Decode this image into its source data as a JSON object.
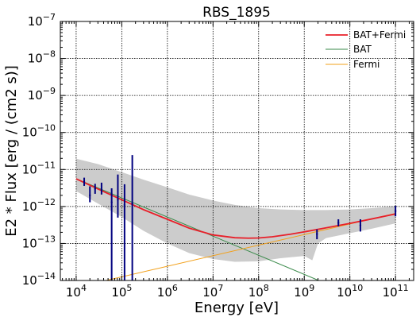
{
  "chart_data": {
    "type": "line",
    "title": "RBS_1895",
    "xlabel": "Energy [eV]",
    "ylabel": "E2 * Flux [erg / (cm2 s)]",
    "xscale": "log",
    "yscale": "log",
    "xlim": [
      4500.0,
      250000000000.0
    ],
    "ylim": [
      1e-14,
      1e-07
    ],
    "grid": true,
    "legend_position": "top-right",
    "x_ticks": [
      {
        "value": 10000.0,
        "base": "10",
        "exp": "4"
      },
      {
        "value": 100000.0,
        "base": "10",
        "exp": "5"
      },
      {
        "value": 1000000.0,
        "base": "10",
        "exp": "6"
      },
      {
        "value": 10000000.0,
        "base": "10",
        "exp": "7"
      },
      {
        "value": 100000000.0,
        "base": "10",
        "exp": "8"
      },
      {
        "value": 1000000000.0,
        "base": "10",
        "exp": "9"
      },
      {
        "value": 10000000000.0,
        "base": "10",
        "exp": "10"
      },
      {
        "value": 100000000000.0,
        "base": "10",
        "exp": "11"
      }
    ],
    "y_ticks": [
      {
        "value": 1e-14,
        "base": "10",
        "exp": "−14"
      },
      {
        "value": 1e-13,
        "base": "10",
        "exp": "−13"
      },
      {
        "value": 1e-12,
        "base": "10",
        "exp": "−12"
      },
      {
        "value": 1e-11,
        "base": "10",
        "exp": "−11"
      },
      {
        "value": 1e-10,
        "base": "10",
        "exp": "−10"
      },
      {
        "value": 1e-09,
        "base": "10",
        "exp": "−9"
      },
      {
        "value": 1e-08,
        "base": "10",
        "exp": "−8"
      },
      {
        "value": 1e-07,
        "base": "10",
        "exp": "−7"
      }
    ],
    "series": [
      {
        "name": "BAT+Fermi",
        "color": "#e8202a",
        "width": 1.8,
        "x": [
          10000.0,
          30000.0,
          100000.0,
          300000.0,
          1000000.0,
          3000000.0,
          10000000.0,
          30000000.0,
          60000000.0,
          100000000.0,
          200000000.0,
          500000000.0,
          1000000000.0,
          3000000000.0,
          10000000000.0,
          30000000000.0,
          100000000000.0
        ],
        "y": [
          5.6e-12,
          2.97e-12,
          1.52e-12,
          8.2e-13,
          4.5e-13,
          2.6e-13,
          1.7e-13,
          1.43e-13,
          1.39e-13,
          1.41e-13,
          1.52e-13,
          1.78e-13,
          2.06e-13,
          2.65e-13,
          3.5e-13,
          4.6e-13,
          6.3e-13
        ]
      },
      {
        "name": "BAT",
        "color": "#3a8a4a",
        "width": 1.0,
        "x": [
          10000.0,
          100000000000.0
        ],
        "y": [
          5.6e-12,
          1.35e-15
        ]
      },
      {
        "name": "Fermi",
        "color": "#f2a01a",
        "width": 1.0,
        "x": [
          10000.0,
          100000000000.0
        ],
        "y": [
          6.5e-15,
          6.5e-13
        ]
      }
    ],
    "band": {
      "color": "#cccccc",
      "x": [
        10000.0,
        30000.0,
        100000.0,
        300000.0,
        1000000.0,
        3000000.0,
        10000000.0,
        30000000.0,
        100000000.0,
        300000000.0,
        1000000000.0,
        1500000000.0,
        2000000000.0,
        3000000000.0,
        10000000000.0,
        30000000000.0,
        100000000000.0
      ],
      "upper": [
        1.95e-11,
        1.4e-11,
        8.5e-12,
        5.3e-12,
        3.3e-12,
        2.1e-12,
        1.45e-12,
        1.1e-12,
        9e-13,
        8.3e-13,
        8e-13,
        8e-13,
        8e-13,
        8e-13,
        8.3e-13,
        9e-13,
        1.02e-12
      ],
      "lower": [
        2.6e-12,
        1.2e-12,
        5.2e-13,
        2.2e-13,
        1e-13,
        5.5e-14,
        3.8e-14,
        3.2e-14,
        3.3e-14,
        4e-14,
        4.6e-14,
        3.5e-14,
        1e-13,
        1.4e-13,
        1.9e-13,
        2.5e-13,
        3.5e-13
      ]
    },
    "band_cutout": {
      "x": [
        1700000000.0,
        2000000000.0,
        3000000000.0,
        5000000000.0,
        10000000000.0,
        20000000000.0,
        50000000000.0,
        100000000000.0
      ],
      "upper": [
        1e-14,
        2.5e-14,
        5.3e-14,
        8e-14,
        1.2e-13,
        1.7e-13,
        2.7e-13,
        3.5e-13
      ]
    },
    "points": {
      "color": "#00007f",
      "items": [
        {
          "x": 15000.0,
          "y": 4.6e-12,
          "ylo": 3.6e-12,
          "yhi": 6e-12
        },
        {
          "x": 20000.0,
          "y": 2e-12,
          "ylo": 1.3e-12,
          "yhi": 3.5e-12
        },
        {
          "x": 26000.0,
          "y": 3e-12,
          "ylo": 2.2e-12,
          "yhi": 4.1e-12
        },
        {
          "x": 36000.0,
          "y": 2.8e-12,
          "ylo": 2.1e-12,
          "yhi": 4.4e-12
        },
        {
          "x": 60000.0,
          "y": 1.3e-12,
          "ylo": 1e-14,
          "yhi": 3.1e-12
        },
        {
          "x": 82000.0,
          "y": 1.5e-12,
          "ylo": 5e-13,
          "yhi": 7.3e-12
        },
        {
          "x": 115000.0,
          "y": 1.1e-12,
          "ylo": 1e-14,
          "yhi": 4e-12
        },
        {
          "x": 170000.0,
          "y": 1.2e-12,
          "ylo": 1e-14,
          "yhi": 2.45e-11
        },
        {
          "x": 1900000000.0,
          "y": 1.8e-13,
          "ylo": 1.3e-13,
          "yhi": 2.4e-13
        },
        {
          "x": 5600000000.0,
          "y": 3.6e-13,
          "ylo": 2.9e-13,
          "yhi": 4.5e-13
        },
        {
          "x": 17000000000.0,
          "y": 3.1e-13,
          "ylo": 2.1e-13,
          "yhi": 4.5e-13
        },
        {
          "x": 100000000000.0,
          "y": 7.5e-13,
          "ylo": 5.4e-13,
          "yhi": 1.04e-12
        }
      ]
    }
  }
}
